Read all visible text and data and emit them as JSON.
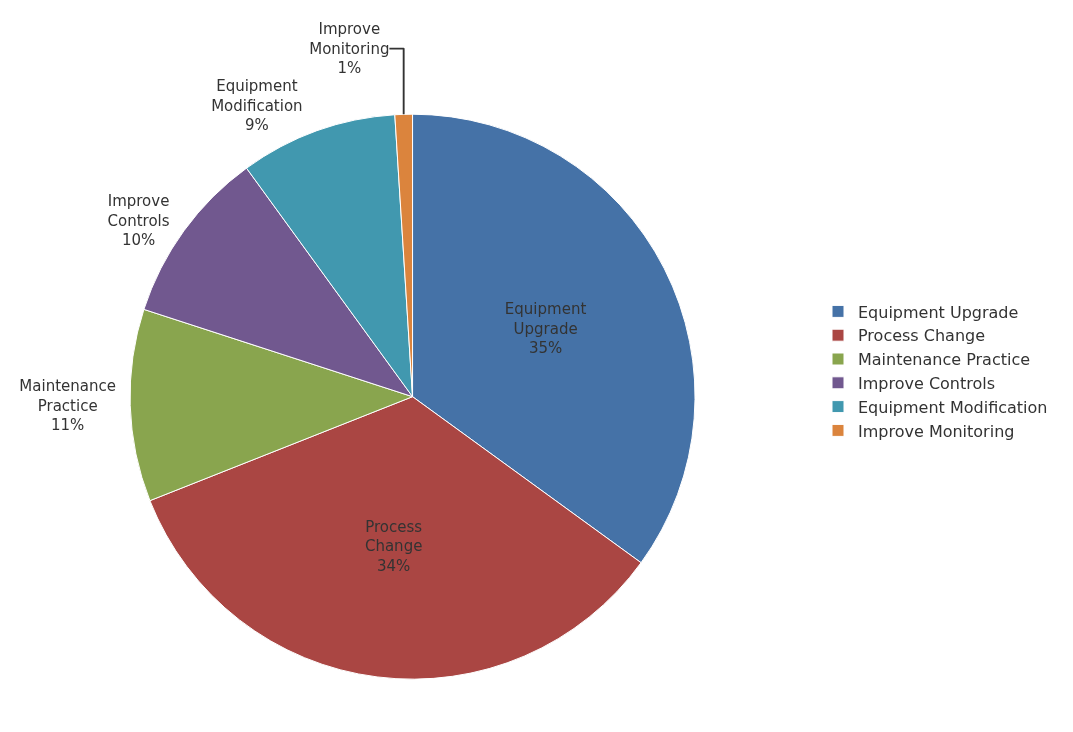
{
  "chart_data": {
    "type": "pie",
    "categories": [
      "Equipment Upgrade",
      "Process Change",
      "Maintenance Practice",
      "Improve Controls",
      "Equipment Modification",
      "Improve Monitoring"
    ],
    "values": [
      35,
      34,
      11,
      10,
      9,
      1
    ],
    "value_labels": [
      "35%",
      "34%",
      "11%",
      "10%",
      "9%",
      "1%"
    ],
    "colors": [
      "#4572a7",
      "#aa4643",
      "#89a54e",
      "#71588f",
      "#4198af",
      "#db843d"
    ],
    "legend": "right"
  }
}
